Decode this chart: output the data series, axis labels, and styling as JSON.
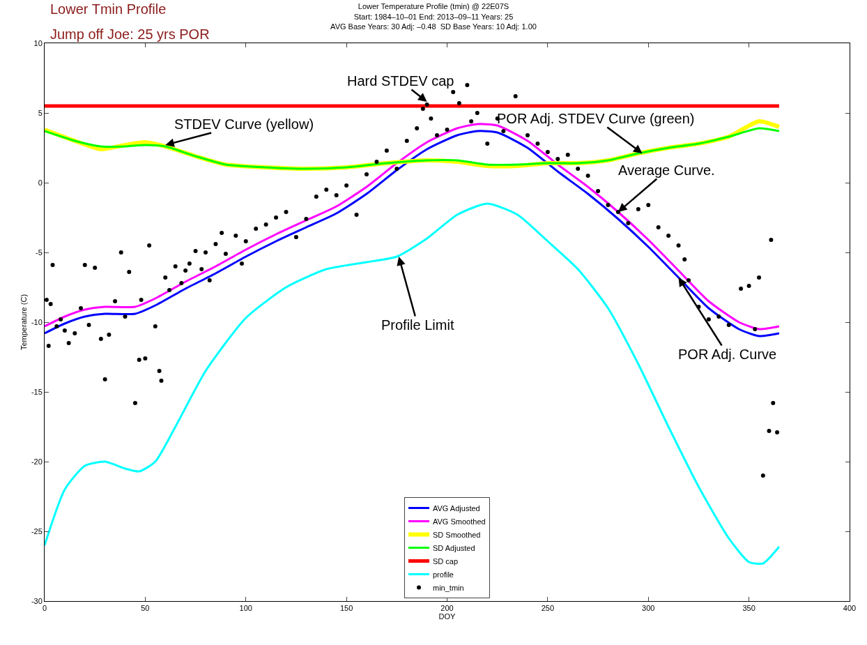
{
  "chart_data": {
    "type": "line",
    "title": "Lower Temperature Profile (tmin) @ 22E07S",
    "subtitle": "Start: 1984–10–01 End: 2013–09–11 Years: 25\nAVG Base Years: 30 Adj: –0.48  SD Base Years: 10 Adj: 1.00",
    "xlabel": "DOY",
    "ylabel": "Temperature (C)",
    "xlim": [
      0,
      400
    ],
    "xticks": [
      0,
      50,
      100,
      150,
      200,
      250,
      300,
      350,
      400
    ],
    "ylim": [
      -30,
      10
    ],
    "yticks": [
      -30,
      -25,
      -20,
      -15,
      -10,
      -5,
      0,
      5,
      10
    ],
    "legend": "bottom",
    "marker": "none",
    "line_style": "solid",
    "series": [
      {
        "name": "AVG Adjusted",
        "color": "#0000ff",
        "x": [
          0,
          10,
          20,
          30,
          45,
          55,
          70,
          85,
          100,
          115,
          130,
          145,
          160,
          175,
          190,
          205,
          215,
          225,
          240,
          255,
          270,
          285,
          300,
          315,
          330,
          345,
          355,
          365
        ],
        "values": [
          -10.8,
          -10.1,
          -9.6,
          -9.4,
          -9.4,
          -8.8,
          -7.6,
          -6.5,
          -5.3,
          -4.2,
          -3.2,
          -2.2,
          -0.8,
          0.9,
          2.4,
          3.4,
          3.7,
          3.6,
          2.5,
          0.8,
          -0.8,
          -2.6,
          -4.6,
          -6.8,
          -9.0,
          -10.5,
          -11.0,
          -10.8
        ]
      },
      {
        "name": "AVG Smoothed",
        "color": "#ff00ff",
        "x": [
          0,
          10,
          20,
          30,
          45,
          55,
          70,
          85,
          100,
          115,
          130,
          145,
          160,
          175,
          190,
          205,
          215,
          225,
          240,
          255,
          270,
          285,
          300,
          315,
          330,
          345,
          355,
          365
        ],
        "values": [
          -10.3,
          -9.6,
          -9.1,
          -8.9,
          -8.9,
          -8.3,
          -7.1,
          -6.0,
          -4.8,
          -3.7,
          -2.7,
          -1.7,
          -0.3,
          1.4,
          2.9,
          3.9,
          4.2,
          4.1,
          3.0,
          1.3,
          -0.3,
          -2.1,
          -4.1,
          -6.3,
          -8.5,
          -10.0,
          -10.5,
          -10.3
        ]
      },
      {
        "name": "SD Smoothed",
        "color": "#ffff00",
        "x": [
          0,
          15,
          28,
          40,
          50,
          60,
          75,
          90,
          110,
          130,
          150,
          170,
          190,
          205,
          220,
          235,
          250,
          265,
          280,
          295,
          310,
          325,
          340,
          355,
          365
        ],
        "values": [
          3.8,
          3.0,
          2.4,
          2.7,
          2.9,
          2.6,
          1.9,
          1.3,
          1.1,
          1.0,
          1.1,
          1.4,
          1.6,
          1.5,
          1.2,
          1.2,
          1.4,
          1.4,
          1.6,
          2.1,
          2.5,
          2.8,
          3.3,
          4.4,
          4.0
        ]
      },
      {
        "name": "SD Adjusted",
        "color": "#00ff00",
        "x": [
          0,
          15,
          28,
          40,
          50,
          60,
          75,
          90,
          110,
          130,
          150,
          170,
          190,
          205,
          220,
          235,
          250,
          265,
          280,
          295,
          310,
          325,
          340,
          355,
          365
        ],
        "values": [
          3.7,
          3.0,
          2.6,
          2.6,
          2.7,
          2.6,
          1.9,
          1.3,
          1.1,
          1.0,
          1.1,
          1.4,
          1.6,
          1.6,
          1.3,
          1.3,
          1.4,
          1.4,
          1.6,
          2.1,
          2.5,
          2.8,
          3.3,
          3.9,
          3.7
        ]
      },
      {
        "name": "SD cap",
        "color": "#ff0000",
        "x": [
          0,
          365
        ],
        "values": [
          5.5,
          5.5
        ]
      },
      {
        "name": "profile",
        "color": "#00ffff",
        "x": [
          0,
          10,
          20,
          30,
          40,
          47,
          55,
          65,
          80,
          100,
          120,
          140,
          160,
          175,
          190,
          205,
          220,
          235,
          250,
          265,
          280,
          295,
          310,
          325,
          340,
          350,
          357,
          365
        ],
        "values": [
          -26,
          -22,
          -20.3,
          -20.0,
          -20.5,
          -20.7,
          -20.0,
          -17.5,
          -13.5,
          -9.7,
          -7.5,
          -6.2,
          -5.7,
          -5.3,
          -4.0,
          -2.3,
          -1.5,
          -2.3,
          -4.2,
          -6.2,
          -9.0,
          -13.0,
          -17.5,
          -21.8,
          -25.5,
          -27.2,
          -27.3,
          -26.1
        ]
      },
      {
        "name": "min_tmin",
        "color": "#000000",
        "type": "scatter",
        "marker": "circle",
        "x": [
          1,
          2,
          3,
          4,
          6,
          8,
          10,
          12,
          15,
          18,
          20,
          22,
          25,
          28,
          30,
          32,
          35,
          38,
          40,
          42,
          45,
          47,
          48,
          50,
          52,
          55,
          57,
          58,
          60,
          62,
          65,
          68,
          70,
          72,
          75,
          78,
          80,
          82,
          85,
          88,
          90,
          95,
          98,
          100,
          105,
          110,
          115,
          120,
          125,
          130,
          135,
          140,
          145,
          150,
          155,
          160,
          165,
          170,
          175,
          180,
          185,
          188,
          190,
          192,
          195,
          200,
          203,
          206,
          210,
          212,
          215,
          220,
          225,
          228,
          234,
          240,
          245,
          250,
          255,
          260,
          265,
          270,
          275,
          280,
          285,
          290,
          295,
          300,
          305,
          310,
          315,
          318,
          320,
          325,
          330,
          335,
          340,
          346,
          350,
          353,
          355,
          357,
          360,
          361,
          362,
          364
        ],
        "values": [
          -8.4,
          -11.7,
          -8.7,
          -5.9,
          -10.3,
          -9.8,
          -10.6,
          -11.5,
          -10.8,
          -9.0,
          -5.9,
          -10.2,
          -6.1,
          -11.2,
          -14.1,
          -10.9,
          -8.5,
          -5.0,
          -9.6,
          -6.4,
          -15.8,
          -12.7,
          -8.4,
          -12.6,
          -4.5,
          -10.3,
          -13.5,
          -14.2,
          -6.8,
          -7.7,
          -6.0,
          -7.2,
          -6.3,
          -5.8,
          -4.9,
          -6.2,
          -5.0,
          -7.0,
          -4.4,
          -3.6,
          -5.1,
          -3.8,
          -5.8,
          -4.2,
          -3.3,
          -3.0,
          -2.5,
          -2.1,
          -3.9,
          -2.6,
          -1.0,
          -0.5,
          -0.9,
          -0.2,
          -2.3,
          0.6,
          1.5,
          2.3,
          1.0,
          3.0,
          3.9,
          5.3,
          5.6,
          4.6,
          3.4,
          3.8,
          6.5,
          5.7,
          7.0,
          4.4,
          5.0,
          2.8,
          4.6,
          3.7,
          6.2,
          3.4,
          2.8,
          2.2,
          1.7,
          2.0,
          1.0,
          0.5,
          -0.6,
          -1.6,
          -2.1,
          -2.9,
          -1.9,
          -1.6,
          -3.2,
          -3.8,
          -4.5,
          -5.5,
          -7.0,
          -8.9,
          -9.8,
          -9.6,
          -10.2,
          -7.6,
          -7.4,
          -10.5,
          -6.8,
          -21.0,
          -17.8,
          -4.1,
          -15.8,
          -17.9
        ]
      }
    ],
    "annotations": [
      "Lower Tmin Profile",
      "Jump off Joe: 25 yrs POR",
      {
        "text": "Hard STDEV cap",
        "x": 190,
        "y": 5.8
      },
      {
        "text": "STDEV Curve (yellow)",
        "x": 60,
        "y": 2.7
      },
      {
        "text": "POR Adj. STDEV Curve (green)",
        "x": 297,
        "y": 2.1
      },
      {
        "text": "Average Curve.",
        "x": 285,
        "y": -2.1
      },
      {
        "text": "Profile Limit",
        "x": 176,
        "y": -5.3
      },
      {
        "text": "POR Adj. Curve",
        "x": 315,
        "y": -6.8
      }
    ]
  }
}
